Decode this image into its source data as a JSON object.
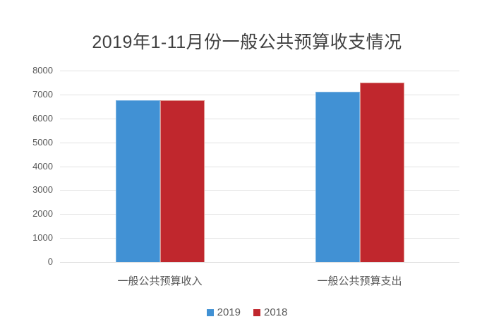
{
  "chart_data": {
    "type": "bar",
    "title": "2019年1-11月份一般公共预算收支情况",
    "categories": [
      "一般公共预算收入",
      "一般公共预算支出"
    ],
    "series": [
      {
        "name": "2019",
        "values": [
          6760,
          7110
        ],
        "color": "#4191d4",
        "border_color": "#7db4e2"
      },
      {
        "name": "2018",
        "values": [
          6760,
          7500
        ],
        "color": "#c0272d",
        "border_color": "#de958d"
      }
    ],
    "ylim": [
      0,
      8000
    ],
    "ytick_step": 1000,
    "yticks": [
      0,
      1000,
      2000,
      3000,
      4000,
      5000,
      6000,
      7000,
      8000
    ],
    "grid": true,
    "legend_position": "bottom",
    "xlabel": "",
    "ylabel": ""
  },
  "colors": {
    "background": "#ffffff",
    "gridline": "#e2e2e2",
    "baseline": "#d6d6d6",
    "axis_text": "#595959",
    "title_text": "#404040"
  }
}
